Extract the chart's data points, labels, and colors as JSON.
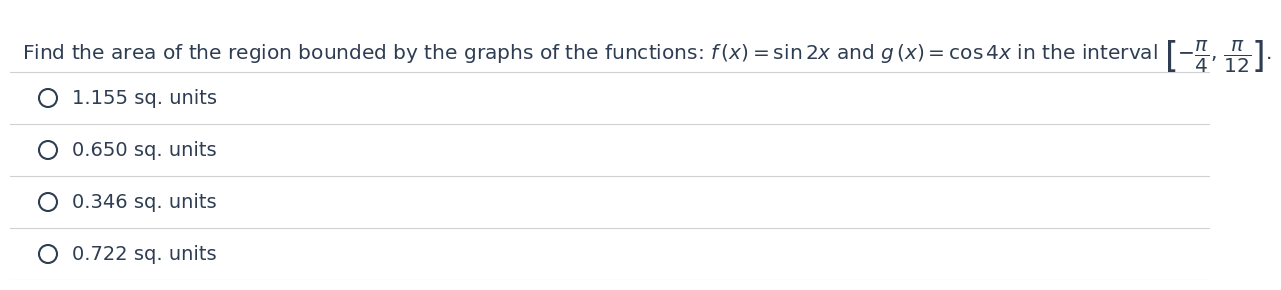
{
  "question_plain": "Find the area of the region bounded by the graphs of the functions: ",
  "question_math": "$f\\,(x) = \\sin 2x$ and $g\\,(x) = \\cos 4x$ in the interval $\\left[-\\dfrac{\\pi}{4},\\, \\dfrac{\\pi}{12}\\right]$.",
  "options": [
    "1.155 sq. units",
    "0.650 sq. units",
    "0.346 sq. units",
    "0.722 sq. units"
  ],
  "bg_color": "#ffffff",
  "text_color": "#2e3d52",
  "line_color": "#d0d0d0",
  "font_size_question": 14.5,
  "font_size_options": 14.0,
  "fig_width": 12.0,
  "fig_height": 2.7
}
